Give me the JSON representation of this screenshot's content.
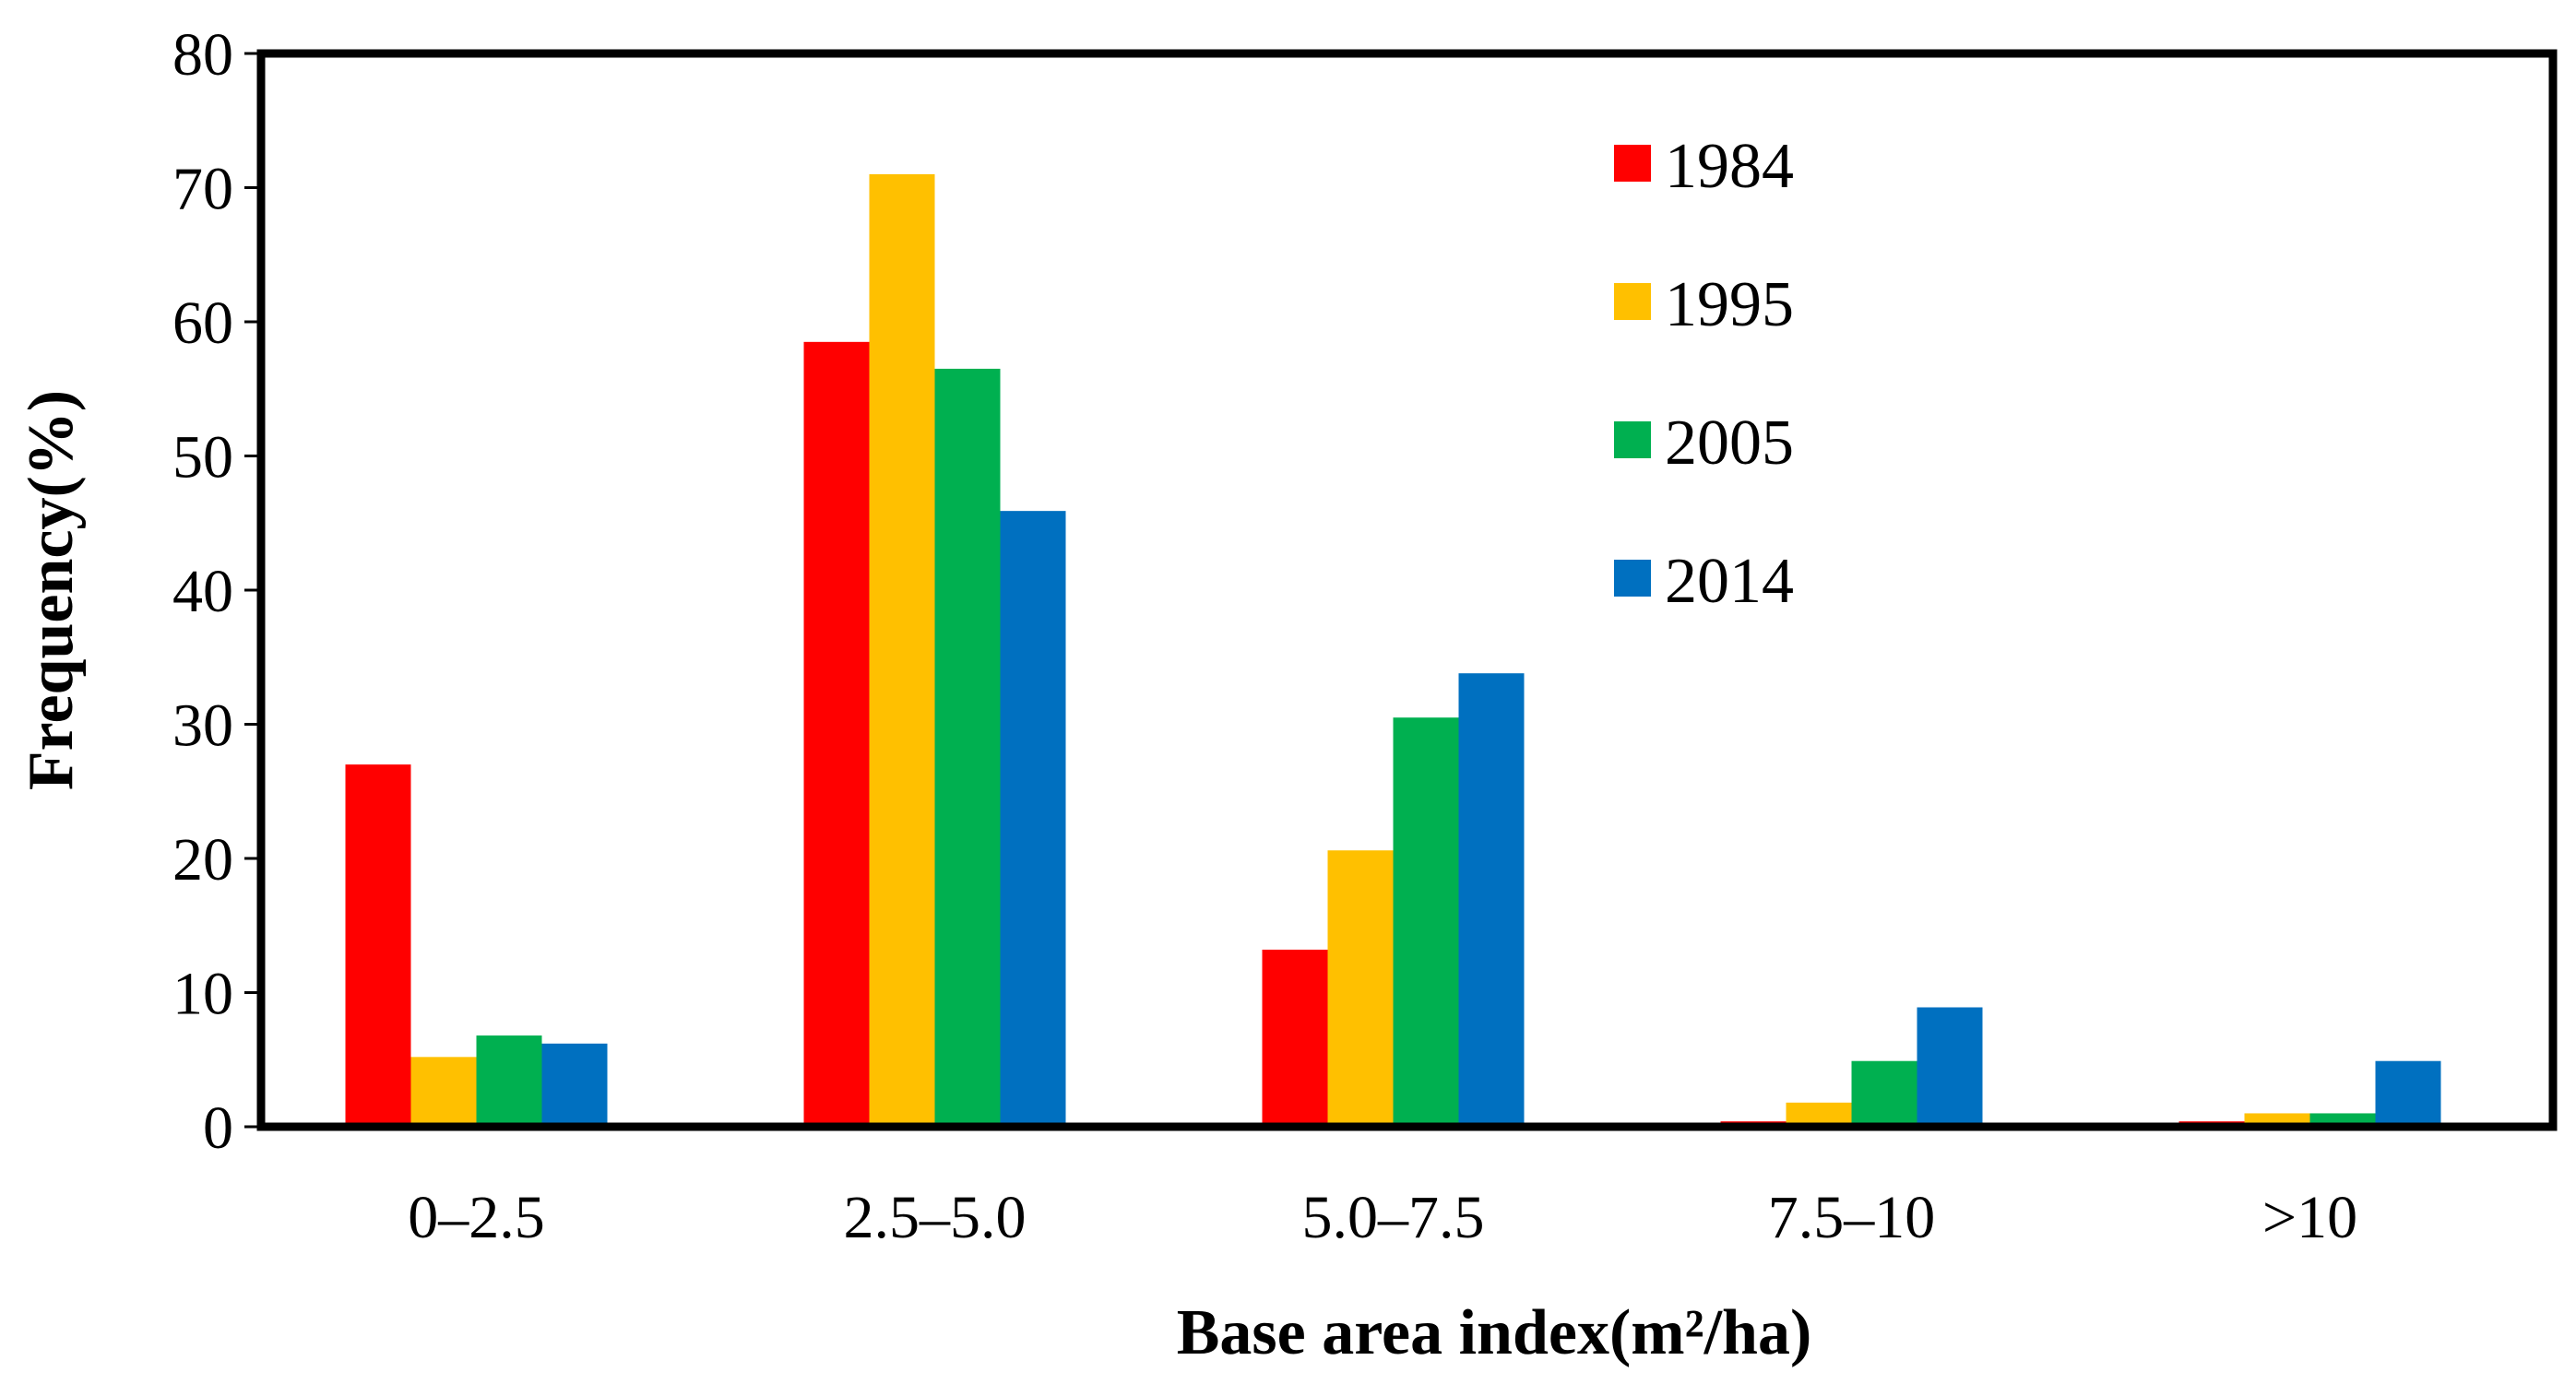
{
  "chart_data": {
    "type": "bar",
    "title": "",
    "xlabel": "Base area index(m²/ha)",
    "ylabel": "Frequency(%)",
    "ylim": [
      0,
      80
    ],
    "yticks": [
      "0",
      "10",
      "20",
      "30",
      "40",
      "50",
      "60",
      "70",
      "80"
    ],
    "categories": [
      "0–2.5",
      "2.5–5.0",
      "5.0–7.5",
      "7.5–10",
      ">10"
    ],
    "series": [
      {
        "name": "1984",
        "color": "#ff0000",
        "values": [
          27.0,
          58.5,
          13.2,
          0.4,
          0.4
        ]
      },
      {
        "name": "1995",
        "color": "#ffc000",
        "values": [
          5.2,
          71.0,
          20.6,
          1.8,
          1.0
        ]
      },
      {
        "name": "2005",
        "color": "#00b050",
        "values": [
          6.8,
          56.5,
          30.5,
          4.9,
          1.0
        ]
      },
      {
        "name": "2014",
        "color": "#0070c0",
        "values": [
          6.2,
          45.9,
          33.8,
          8.9,
          4.9
        ]
      }
    ],
    "legend_position": "top-right",
    "grid": false
  }
}
